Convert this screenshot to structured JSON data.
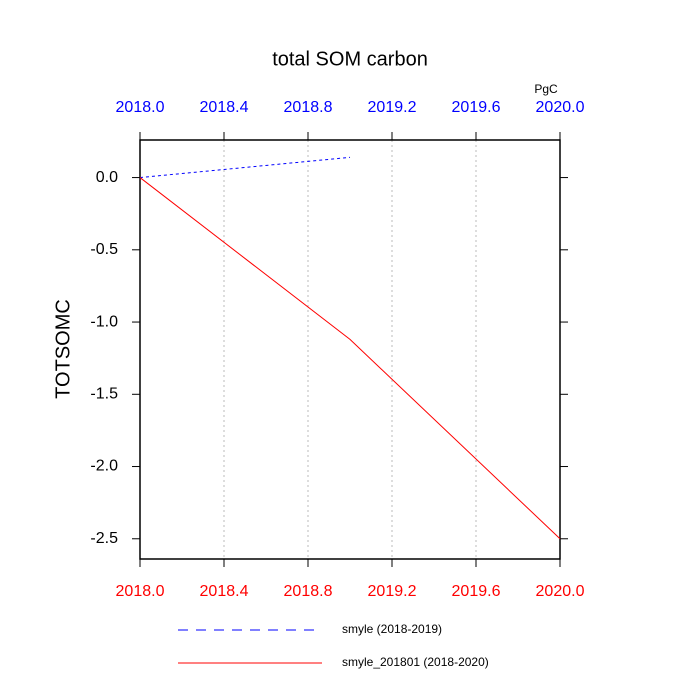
{
  "chart_data": {
    "type": "line",
    "title": "total SOM carbon",
    "ylabel": "TOTSOMC",
    "units": "PgC",
    "xlim": [
      2018.0,
      2020.0
    ],
    "xticks": [
      {
        "value": 2018.0,
        "label": "2018.0"
      },
      {
        "value": 2018.4,
        "label": "2018.4"
      },
      {
        "value": 2018.8,
        "label": "2018.8"
      },
      {
        "value": 2019.2,
        "label": "2019.2"
      },
      {
        "value": 2019.6,
        "label": "2019.6"
      },
      {
        "value": 2020.0,
        "label": "2020.0"
      }
    ],
    "xtick_color": "#ff0000",
    "x2ticks": [
      {
        "value": 2018.0,
        "label": "2018.0"
      },
      {
        "value": 2018.4,
        "label": "2018.4"
      },
      {
        "value": 2018.8,
        "label": "2018.8"
      },
      {
        "value": 2019.2,
        "label": "2019.2"
      },
      {
        "value": 2019.6,
        "label": "2019.6"
      },
      {
        "value": 2020.0,
        "label": "2020.0"
      }
    ],
    "x2tick_color": "#0000ff",
    "ylim": [
      -2.64,
      0.26
    ],
    "yticks": [
      {
        "value": 0,
        "label": "0.0"
      },
      -0.5,
      {
        "value": -1,
        "label": "-1.0"
      },
      -1.5,
      {
        "value": -2,
        "label": "-2.0"
      },
      -2.5
    ],
    "grid": true,
    "series": [
      {
        "name": "smyle (2018-2019)",
        "color": "#0000ff",
        "dash": true,
        "x": [
          2018.0,
          2018.5,
          2019.0
        ],
        "values": [
          0,
          0.07,
          0.14
        ]
      },
      {
        "name": "smyle_201801 (2018-2020)",
        "color": "#ff0000",
        "dash": false,
        "x": [
          2018.0,
          2019.0,
          2020.0
        ],
        "values": [
          0,
          -1.12,
          -2.5
        ]
      }
    ]
  }
}
